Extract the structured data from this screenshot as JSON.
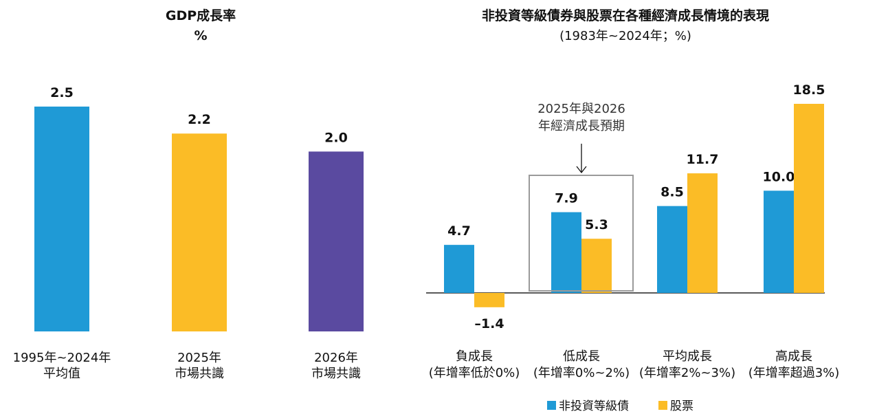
{
  "colors": {
    "blue": "#1f9ad6",
    "yellow": "#fbbc26",
    "purple": "#5a4aa0",
    "axis": "#222222",
    "box": "#9a9a9a"
  },
  "chart_data": [
    {
      "type": "bar",
      "title": "GDP成長率",
      "subtitle": "%",
      "categories": [
        [
          "1995年~2024年",
          "平均值"
        ],
        [
          "2025年",
          "市場共識"
        ],
        [
          "2026年",
          "市場共識"
        ]
      ],
      "values": [
        2.5,
        2.2,
        2.0
      ],
      "value_labels": [
        "2.5",
        "2.2",
        "2.0"
      ],
      "bar_colors": [
        "#1f9ad6",
        "#fbbc26",
        "#5a4aa0"
      ],
      "ylim": [
        0,
        2.5
      ],
      "grid": false
    },
    {
      "type": "bar",
      "title": "非投資等級債券與股票在各種經濟成長情境的表現",
      "subtitle": "(1983年~2024年；%)",
      "categories": [
        [
          "負成長",
          "(年增率低於0%)"
        ],
        [
          "低成長",
          "(年增率0%~2%)"
        ],
        [
          "平均成長",
          "(年增率2%~3%)"
        ],
        [
          "高成長",
          "(年增率超過3%)"
        ]
      ],
      "series": [
        {
          "name": "非投資等級債",
          "color": "#1f9ad6",
          "values": [
            4.7,
            7.9,
            8.5,
            10.0
          ],
          "labels": [
            "4.7",
            "7.9",
            "8.5",
            "10.0"
          ]
        },
        {
          "name": "股票",
          "color": "#fbbc26",
          "values": [
            -1.4,
            5.3,
            11.7,
            18.5
          ],
          "labels": [
            "–1.4",
            "5.3",
            "11.7",
            "18.5"
          ]
        }
      ],
      "ylim": [
        -1.4,
        18.5
      ],
      "grid": false,
      "legend_position": "bottom",
      "annotation": {
        "lines": [
          "2025年與2026",
          "年經濟成長預期"
        ],
        "category_index": 1
      }
    }
  ]
}
